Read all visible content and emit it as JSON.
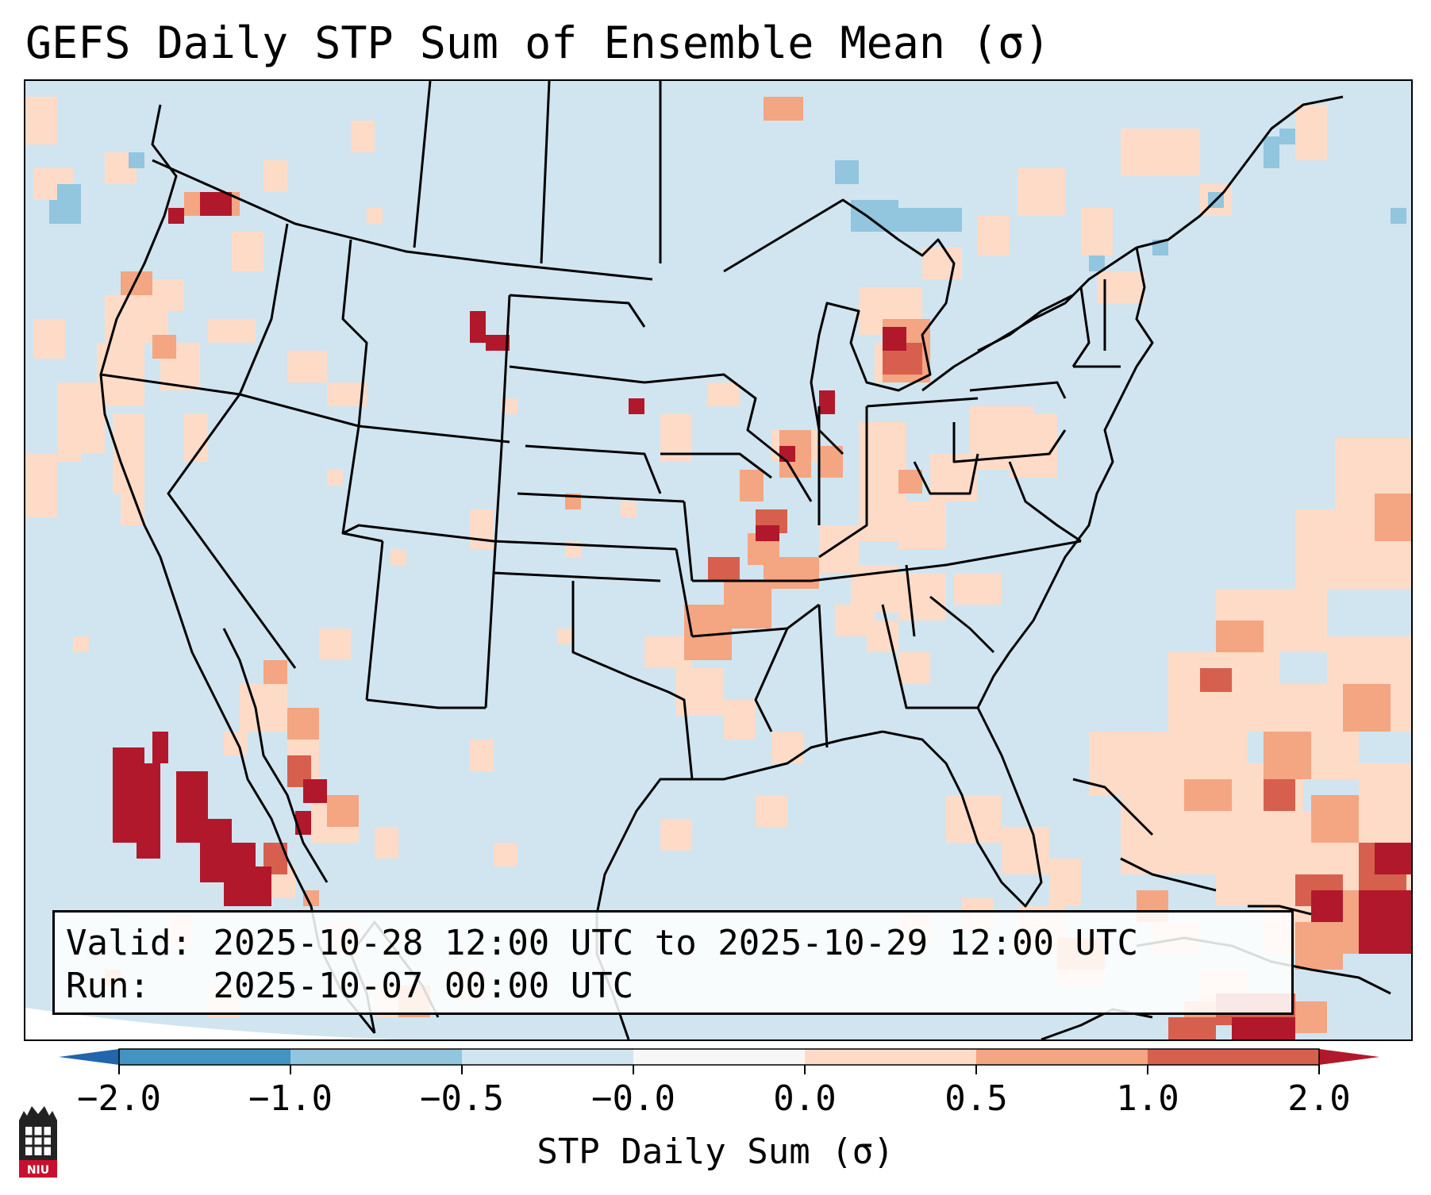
{
  "title": "GEFS Daily STP Sum of Ensemble Mean (σ)",
  "info": {
    "valid_label": "Valid:",
    "valid_value": "2025-10-28 12:00 UTC to 2025-10-29 12:00 UTC",
    "run_label": "Run:",
    "run_value": "2025-10-07 00:00 UTC"
  },
  "colorbar": {
    "label": "STP Daily Sum (σ)",
    "ticks": [
      "−2.0",
      "−1.0",
      "−0.5",
      "−0.0",
      "0.0",
      "0.5",
      "1.0",
      "2.0"
    ],
    "colors": [
      "#4393c3",
      "#92c5de",
      "#d1e5f0",
      "#f7f7f7",
      "#fddbc7",
      "#f4a582",
      "#d6604d"
    ],
    "extend_low_color": "#2166ac",
    "extend_high_color": "#b2182b",
    "extend": "both"
  },
  "map": {
    "background_color": "#d1e5f0",
    "boundary_color": "#000000"
  },
  "logo": {
    "text": "NIU",
    "color": "#c8102e"
  }
}
